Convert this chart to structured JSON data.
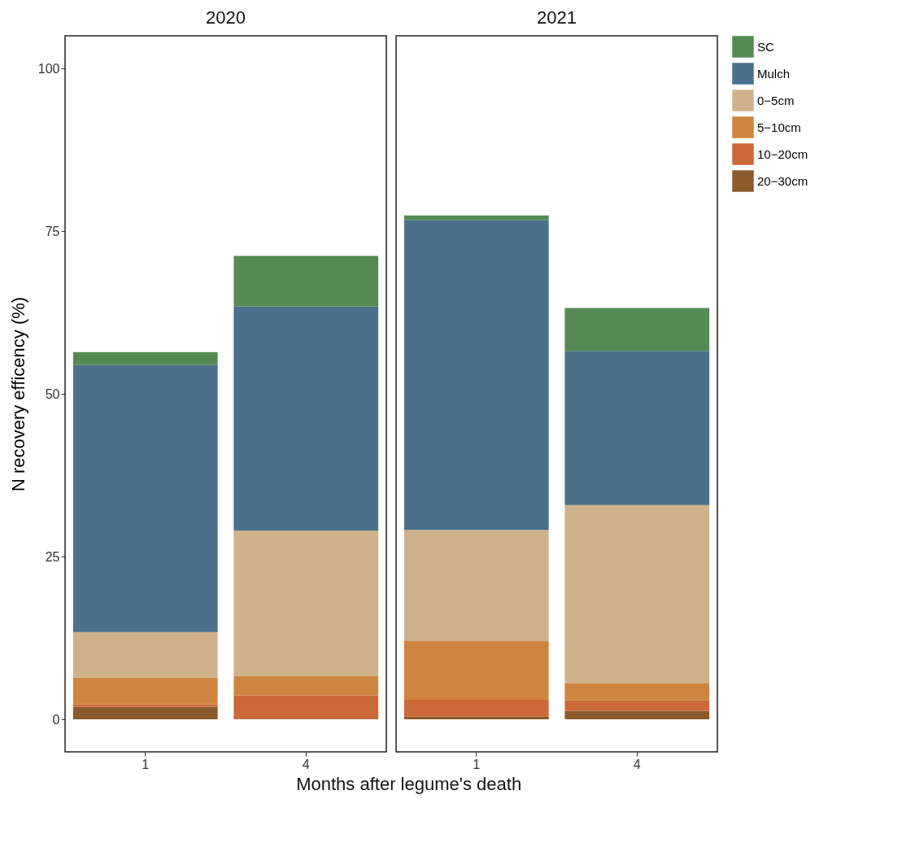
{
  "chart_data": [
    {
      "type": "bar",
      "title": "2020",
      "xlabel": "Months after legume's death",
      "ylabel": "N recovery efficency (%)",
      "categories": [
        "1",
        "4"
      ],
      "stacked": true,
      "ylim": [
        -5,
        105
      ],
      "yticks": [
        0,
        25,
        50,
        75,
        100
      ],
      "grid": false,
      "legend": "right",
      "series": [
        {
          "name": "20−30cm",
          "color": "#8b5a2b",
          "values": [
            1.9,
            0.1
          ]
        },
        {
          "name": "10−20cm",
          "color": "#cd6839",
          "values": [
            0.4,
            3.6
          ]
        },
        {
          "name": "5−10cm",
          "color": "#cd853f",
          "values": [
            4.1,
            3.0
          ]
        },
        {
          "name": "0−5cm",
          "color": "#cfb28b",
          "values": [
            7.0,
            22.3
          ]
        },
        {
          "name": "Mulch",
          "color": "#4a708b",
          "values": [
            41.0,
            34.4
          ]
        },
        {
          "name": "SC",
          "color": "#548b54",
          "values": [
            2.0,
            7.8
          ]
        }
      ]
    },
    {
      "type": "bar",
      "title": "2021",
      "categories": [
        "1",
        "4"
      ],
      "stacked": true,
      "ylim": [
        -5,
        105
      ],
      "yticks": [
        0,
        25,
        50,
        75,
        100
      ],
      "grid": false,
      "tick_labels": "x",
      "legend": "right",
      "series": [
        {
          "name": "20−30cm",
          "color": "#8b5a2b",
          "values": [
            0.4,
            1.3
          ]
        },
        {
          "name": "10−20cm",
          "color": "#cd6839",
          "values": [
            2.6,
            1.6
          ]
        },
        {
          "name": "5−10cm",
          "color": "#cd853f",
          "values": [
            9.0,
            2.6
          ]
        },
        {
          "name": "0−5cm",
          "color": "#cfb28b",
          "values": [
            17.1,
            27.4
          ]
        },
        {
          "name": "Mulch",
          "color": "#4a708b",
          "values": [
            47.6,
            23.7
          ]
        },
        {
          "name": "SC",
          "color": "#548b54",
          "values": [
            0.7,
            6.6
          ]
        }
      ]
    }
  ]
}
